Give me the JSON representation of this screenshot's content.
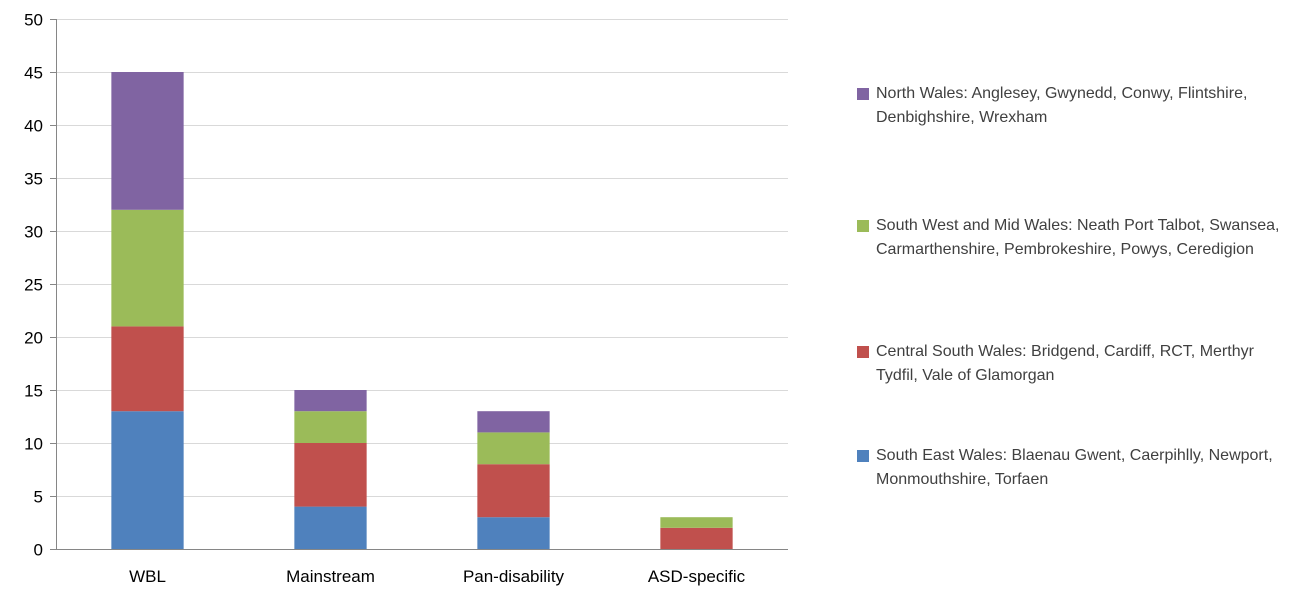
{
  "chart_data": {
    "type": "bar",
    "stacked": true,
    "title": "",
    "xlabel": "",
    "ylabel": "",
    "categories": [
      "WBL",
      "Mainstream",
      "Pan-disability",
      "ASD-specific"
    ],
    "series": [
      {
        "name": "South East Wales: Blaenau Gwent, Caerpihlly, Newport, Monmouthshire, Torfaen",
        "color": "#4F81BD",
        "values": [
          13,
          4,
          3,
          0
        ]
      },
      {
        "name": "Central South Wales: Bridgend, Cardiff, RCT, Merthyr Tydfil, Vale of Glamorgan",
        "color": "#C0504D",
        "values": [
          8,
          6,
          5,
          2
        ]
      },
      {
        "name": "South West and Mid Wales: Neath Port Talbot, Swansea, Carmarthenshire, Pembrokeshire, Powys, Ceredigion",
        "color": "#9BBB59",
        "values": [
          11,
          3,
          3,
          1
        ]
      },
      {
        "name": "North Wales: Anglesey, Gwynedd, Conwy, Flintshire, Denbighshire, Wrexham",
        "color": "#8064A2",
        "values": [
          13,
          2,
          2,
          0
        ]
      }
    ],
    "ylim": [
      0,
      50
    ],
    "yticks": [
      "0",
      "5",
      "10",
      "15",
      "20",
      "25",
      "30",
      "35",
      "40",
      "45",
      "50"
    ],
    "grid": true,
    "legend_position": "right",
    "legend_order": "reverse"
  }
}
